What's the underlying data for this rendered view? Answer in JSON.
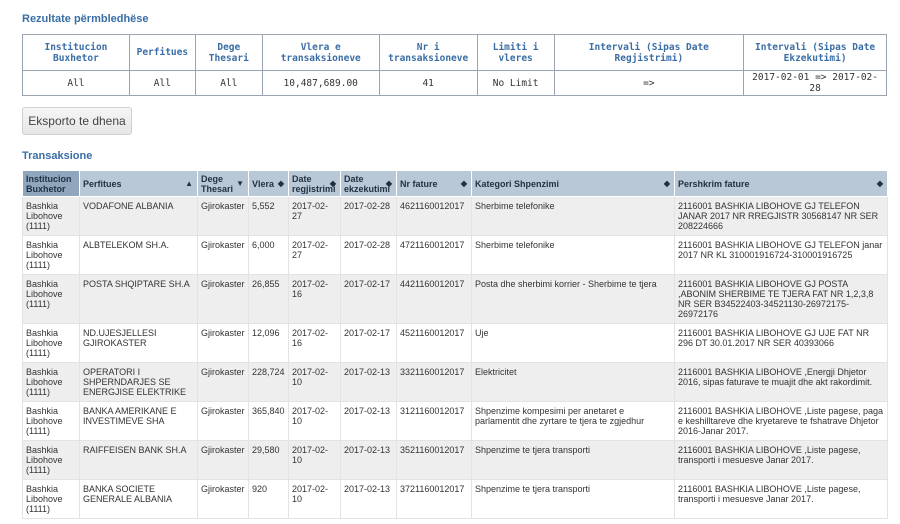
{
  "summary": {
    "title": "Rezultate përmbledhëse",
    "headers": [
      "Institucion Buxhetor",
      "Perfitues",
      "Dege Thesari",
      "Vlera e transaksioneve",
      "Nr i transaksioneve",
      "Limiti i vleres",
      "Intervali (Sipas Date Regjistrimi)",
      "Intervali (Sipas Date Ekzekutimi)"
    ],
    "values": [
      "All",
      "All",
      "All",
      "10,487,689.00",
      "41",
      "No Limit",
      "=>",
      "2017-02-01 => 2017-02-28"
    ]
  },
  "export_button": "Eksporto te dhena",
  "transactions": {
    "title": "Transaksione",
    "headers": [
      "Institucion Buxhetor",
      "Perfitues",
      "Dege Thesari",
      "Vlera",
      "Date regjistrimi",
      "Date ekzekutimi",
      "Nr fature",
      "Kategori Shpenzimi",
      "Pershkrim fature"
    ],
    "rows": [
      [
        "Bashkia Libohove (1111)",
        "VODAFONE ALBANIA",
        "Gjirokaster",
        "5,552",
        "2017-02-27",
        "2017-02-28",
        "4621160012017",
        "Sherbime telefonike",
        "2116001 BASHKIA LIBOHOVE GJ TELEFON JANAR 2017 NR RREGJISTR 30568147 NR SER 208224666"
      ],
      [
        "Bashkia Libohove (1111)",
        "ALBTELEKOM SH.A.",
        "Gjirokaster",
        "6,000",
        "2017-02-27",
        "2017-02-28",
        "4721160012017",
        "Sherbime telefonike",
        "2116001 BASHKIA LIBOHOVE GJ TELEFON janar 2017 NR KL 310001916724-310001916725"
      ],
      [
        "Bashkia Libohove (1111)",
        "POSTA SHQIPTARE SH.A",
        "Gjirokaster",
        "26,855",
        "2017-02-16",
        "2017-02-17",
        "4421160012017",
        "Posta dhe sherbimi korrier - Sherbime te tjera",
        "2116001 BASHKIA LIBOHOVE GJ POSTA ,ABONIM SHERBIME TE TJERA FAT NR 1,2,3,8 NR SER B34522403-34521130-26972175-26972176"
      ],
      [
        "Bashkia Libohove (1111)",
        "ND.UJESJELLESI GJIROKASTER",
        "Gjirokaster",
        "12,096",
        "2017-02-16",
        "2017-02-17",
        "4521160012017",
        "Uje",
        "2116001 BASHKIA LIBOHOVE GJ UJE FAT NR 296 DT 30.01.2017 NR SER 40393066"
      ],
      [
        "Bashkia Libohove (1111)",
        "OPERATORI I SHPERNDARJES SE ENERGJISE ELEKTRIKE",
        "Gjirokaster",
        "228,724",
        "2017-02-10",
        "2017-02-13",
        "3321160012017",
        "Elektricitet",
        "2116001 BASHKIA LIBOHOVE ,Energji Dhjetor 2016, sipas faturave te muajit dhe akt rakordimit."
      ],
      [
        "Bashkia Libohove (1111)",
        "BANKA AMERIKANE E INVESTIMEVE SHA",
        "Gjirokaster",
        "365,840",
        "2017-02-10",
        "2017-02-13",
        "3121160012017",
        "Shpenzime kompesimi per anetaret e parlamentit dhe zyrtare te tjera te zgjedhur",
        "2116001 BASHKIA LIBOHOVE ,Liste pagese, paga e keshilltareve dhe kryetareve te fshatrave Dhjetor 2016-Janar 2017."
      ],
      [
        "Bashkia Libohove (1111)",
        "RAIFFEISEN BANK SH.A",
        "Gjirokaster",
        "29,580",
        "2017-02-10",
        "2017-02-13",
        "3521160012017",
        "Shpenzime te tjera transporti",
        "2116001 BASHKIA LIBOHOVE ,Liste pagese, transporti i mesuesve Janar 2017."
      ],
      [
        "Bashkia Libohove (1111)",
        "BANKA SOCIETE GENERALE ALBANIA",
        "Gjirokaster",
        "920",
        "2017-02-10",
        "2017-02-13",
        "3721160012017",
        "Shpenzime te tjera transporti",
        "2116001 BASHKIA LIBOHOVE ,Liste pagese, transporti i mesuesve Janar 2017."
      ]
    ]
  },
  "icons": {
    "sort": "sort-icon",
    "sort_desc": "sort-desc-icon"
  },
  "colors": {
    "title": "#3a6ea5",
    "header_bg": "#b9c8d6",
    "header_sorted_bg": "#8fa6bd",
    "row_alt_bg": "#eeeeef"
  }
}
